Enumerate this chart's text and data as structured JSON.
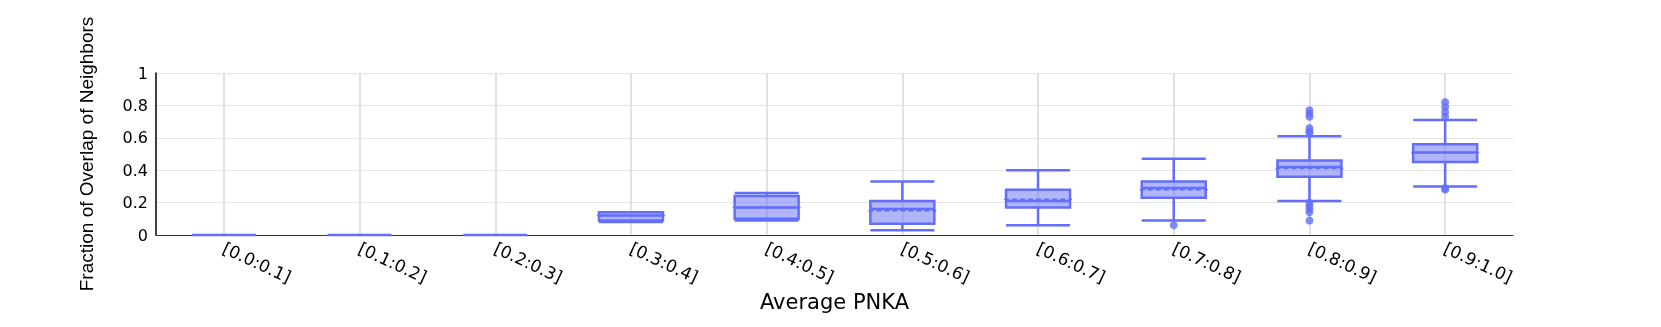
{
  "chart_data": {
    "type": "box",
    "xlabel": "Average PNKA",
    "ylabel": "Fraction of Overlap of Neighbors",
    "categories": [
      "[0.0:0.1]",
      "[0.1:0.2]",
      "[0.2:0.3]",
      "[0.3:0.4]",
      "[0.4:0.5]",
      "[0.5:0.6]",
      "[0.6:0.7]",
      "[0.7:0.8]",
      "[0.8:0.9]",
      "[0.9:1.0]"
    ],
    "color": "#636efa",
    "boxes": [
      {
        "low": 0,
        "q1": 0,
        "median": 0,
        "q3": 0,
        "high": 0
      },
      {
        "low": 0,
        "q1": 0,
        "median": 0,
        "q3": 0,
        "high": 0
      },
      {
        "low": 0,
        "q1": 0,
        "median": 0,
        "q3": 0,
        "high": 0
      },
      {
        "low": 0.08,
        "q1": 0.09,
        "median": 0.12,
        "q3": 0.14,
        "high": 0.14,
        "mean": 0.12
      },
      {
        "low": 0.09,
        "q1": 0.1,
        "median": 0.17,
        "q3": 0.24,
        "high": 0.26,
        "mean": 0.17
      },
      {
        "low": 0.03,
        "q1": 0.07,
        "median": 0.16,
        "q3": 0.21,
        "high": 0.33,
        "mean": 0.15
      },
      {
        "low": 0.06,
        "q1": 0.17,
        "median": 0.21,
        "q3": 0.28,
        "high": 0.4,
        "mean": 0.22
      },
      {
        "low": 0.09,
        "q1": 0.23,
        "median": 0.29,
        "q3": 0.33,
        "high": 0.47,
        "mean": 0.28,
        "outliers": [
          0.06
        ]
      },
      {
        "low": 0.21,
        "q1": 0.36,
        "median": 0.42,
        "q3": 0.46,
        "high": 0.61,
        "mean": 0.41,
        "outliers": [
          0.77,
          0.75,
          0.73,
          0.66,
          0.64,
          0.63,
          0.2,
          0.18,
          0.16,
          0.14,
          0.09
        ]
      },
      {
        "low": 0.3,
        "q1": 0.45,
        "median": 0.51,
        "q3": 0.56,
        "high": 0.71,
        "mean": 0.51,
        "outliers": [
          0.82,
          0.79,
          0.76,
          0.73,
          0.29,
          0.28
        ]
      }
    ],
    "ylim": [
      0,
      1
    ],
    "yticks": [
      0,
      0.2,
      0.4,
      0.6,
      0.8,
      1
    ],
    "grid": true,
    "legend": false
  }
}
